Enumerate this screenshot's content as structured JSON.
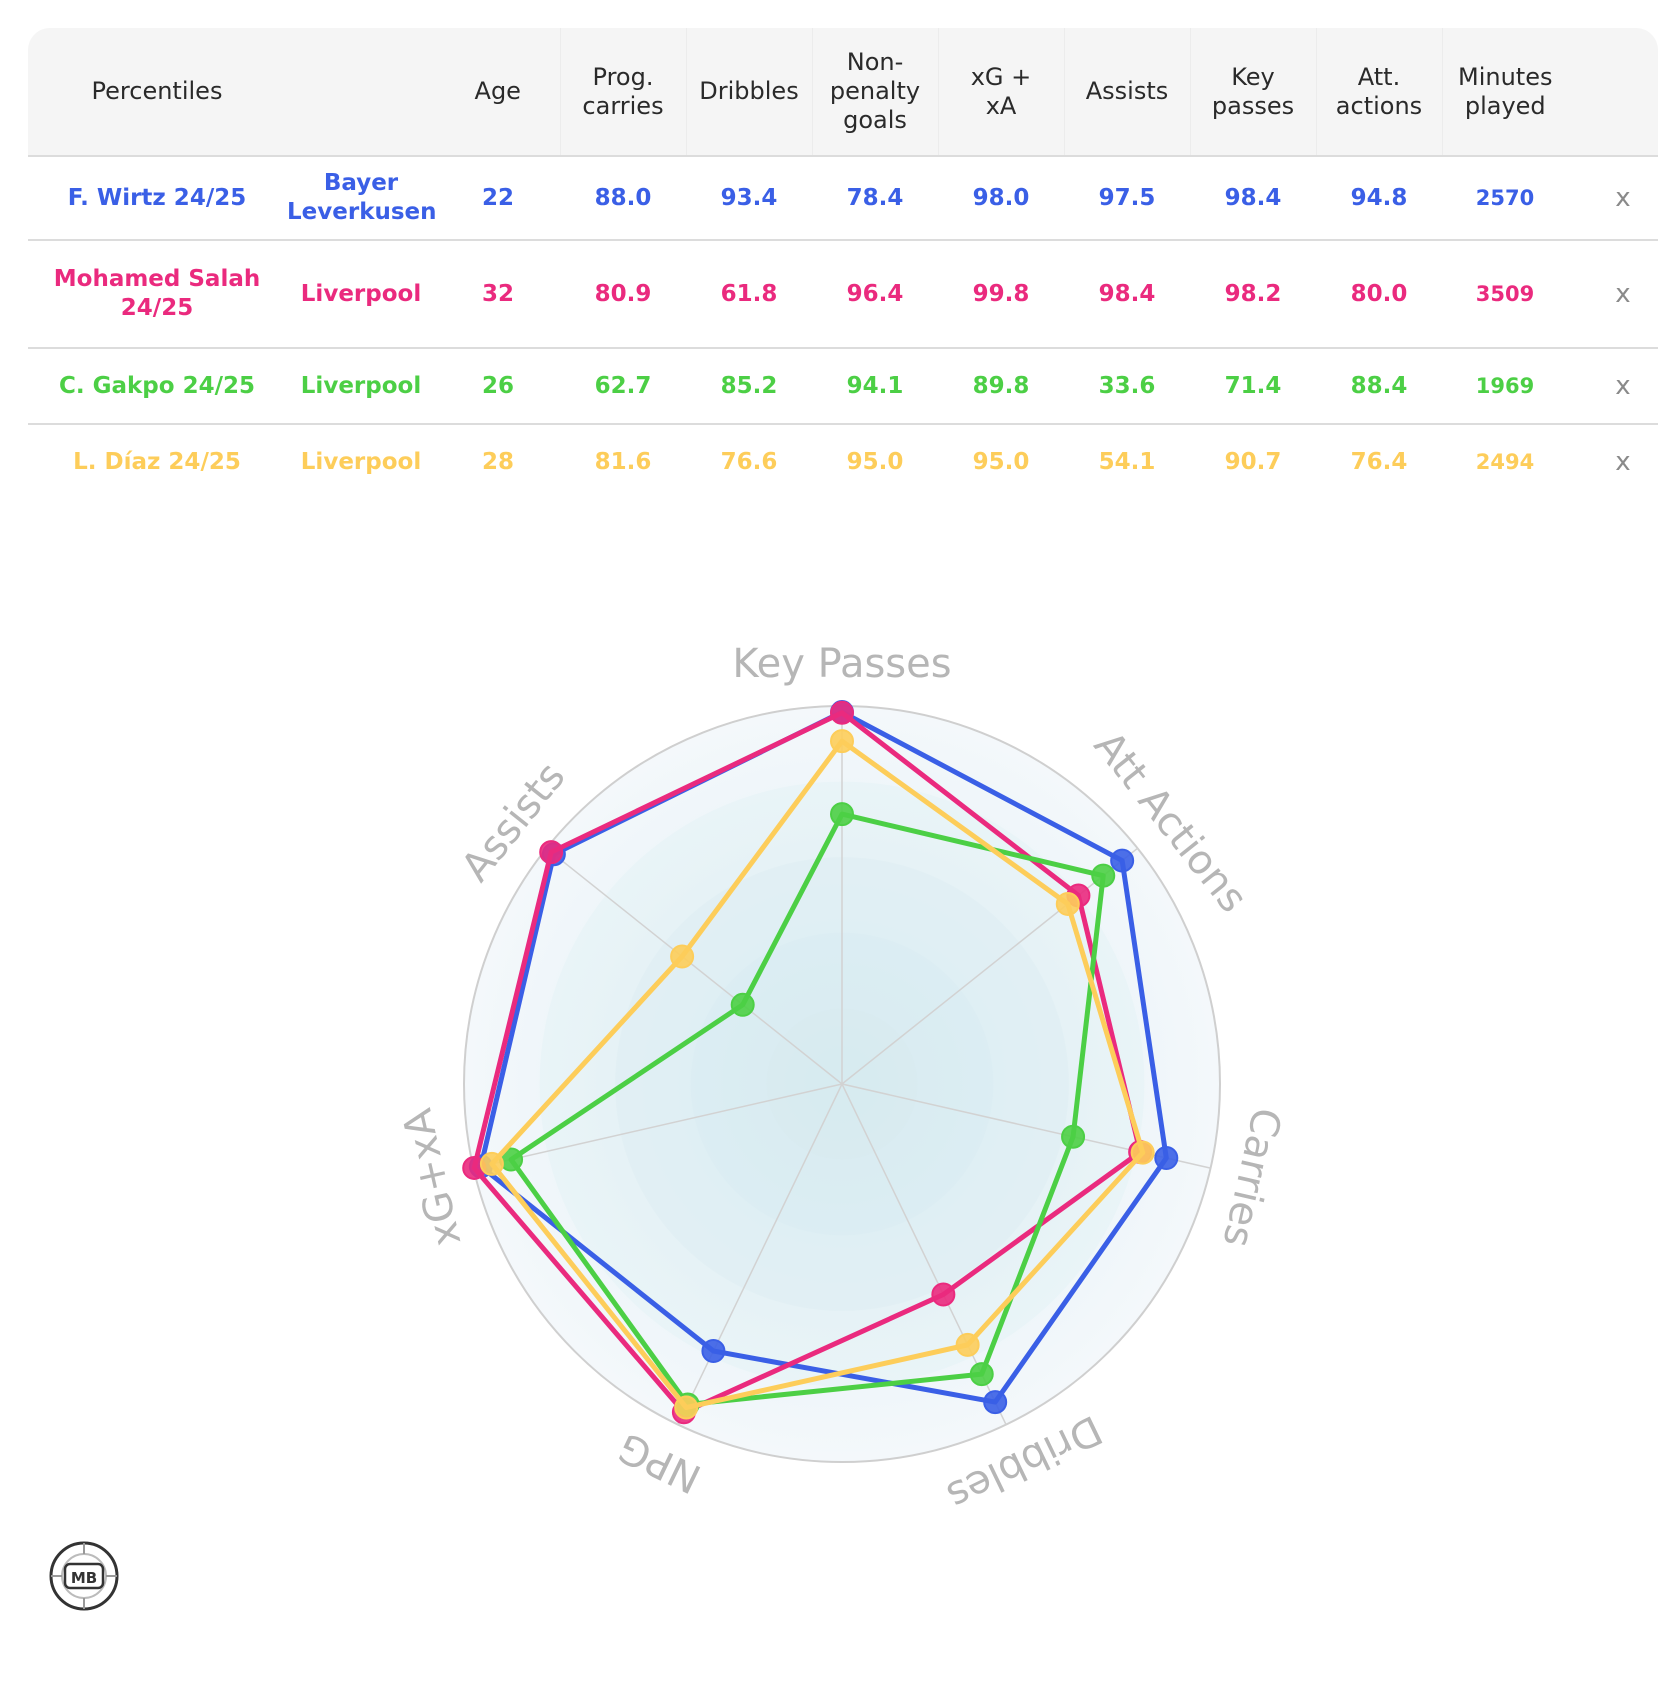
{
  "table": {
    "headers": [
      "Percentiles",
      "",
      "Age",
      "Prog.\ncarries",
      "Dribbles",
      "Non-\npenalty\ngoals",
      "xG +\nxA",
      "Assists",
      "Key\npasses",
      "Att.\nactions",
      "Minutes\nplayed",
      ""
    ],
    "remove_label": "x",
    "rows": [
      {
        "player": "F. Wirtz 24/25",
        "team": "Bayer\nLeverkusen",
        "age": "22",
        "prog_carries": "88.0",
        "dribbles": "93.4",
        "np_goals": "78.4",
        "xg_xa": "98.0",
        "assists": "97.5",
        "key_passes": "98.4",
        "att_actions": "94.8",
        "minutes": "2570",
        "color": "#3a5fe6"
      },
      {
        "player": "Mohamed Salah\n24/25",
        "team": "Liverpool",
        "age": "32",
        "prog_carries": "80.9",
        "dribbles": "61.8",
        "np_goals": "96.4",
        "xg_xa": "99.8",
        "assists": "98.4",
        "key_passes": "98.2",
        "att_actions": "80.0",
        "minutes": "3509",
        "color": "#ea2a7e"
      },
      {
        "player": "C. Gakpo 24/25",
        "team": "Liverpool",
        "age": "26",
        "prog_carries": "62.7",
        "dribbles": "85.2",
        "np_goals": "94.1",
        "xg_xa": "89.8",
        "assists": "33.6",
        "key_passes": "71.4",
        "att_actions": "88.4",
        "minutes": "1969",
        "color": "#4ccf45"
      },
      {
        "player": "L. Díaz 24/25",
        "team": "Liverpool",
        "age": "28",
        "prog_carries": "81.6",
        "dribbles": "76.6",
        "np_goals": "95.0",
        "xg_xa": "95.0",
        "assists": "54.1",
        "key_passes": "90.7",
        "att_actions": "76.4",
        "minutes": "2494",
        "color": "#fdcd5a"
      }
    ]
  },
  "chart_data": {
    "type": "radar",
    "axes": [
      "Key Passes",
      "Att Actions",
      "Carries",
      "Dribbles",
      "NPG",
      "xG+xA",
      "Assists"
    ],
    "range": [
      0,
      100
    ],
    "series": [
      {
        "name": "F. Wirtz 24/25",
        "color": "#3a5fe6",
        "values": [
          98.4,
          94.8,
          88.0,
          93.4,
          78.4,
          98.0,
          97.5
        ]
      },
      {
        "name": "Mohamed Salah 24/25",
        "color": "#ea2a7e",
        "values": [
          98.2,
          80.0,
          80.9,
          61.8,
          96.4,
          99.8,
          98.4
        ]
      },
      {
        "name": "C. Gakpo 24/25",
        "color": "#4ccf45",
        "values": [
          71.4,
          88.4,
          62.7,
          85.2,
          94.1,
          89.8,
          33.6
        ]
      },
      {
        "name": "L. Díaz 24/25",
        "color": "#fdcd5a",
        "values": [
          90.7,
          76.4,
          81.6,
          76.6,
          95.0,
          95.0,
          54.1
        ]
      }
    ]
  },
  "logo": {
    "text": "MB"
  }
}
